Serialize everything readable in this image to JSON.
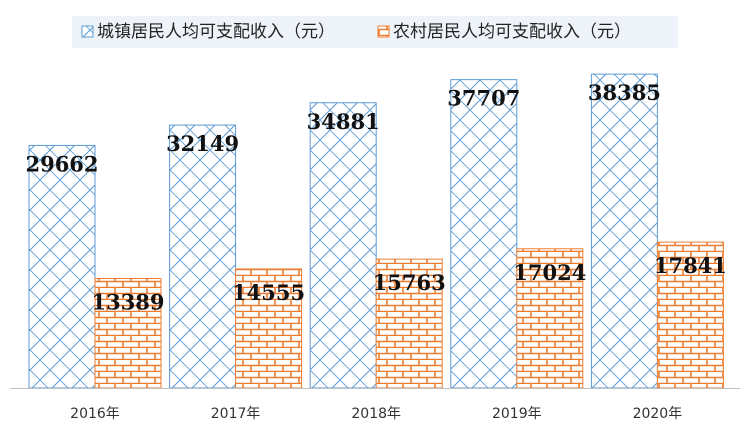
{
  "chart_data": {
    "type": "bar",
    "categories": [
      "2016年",
      "2017年",
      "2018年",
      "2019年",
      "2020年"
    ],
    "series": [
      {
        "name": "城镇居民人均可支配收入（元）",
        "values": [
          29662,
          32149,
          34881,
          37707,
          38385
        ],
        "color": "#5b9bd5",
        "pattern": "crosshatch"
      },
      {
        "name": "农村居民人均可支配收入（元）",
        "values": [
          13389,
          14555,
          15763,
          17024,
          17841
        ],
        "color": "#ed7d31",
        "pattern": "brick"
      }
    ],
    "ylim": [
      0,
      45000
    ],
    "legend_position": "top",
    "grid": false
  }
}
